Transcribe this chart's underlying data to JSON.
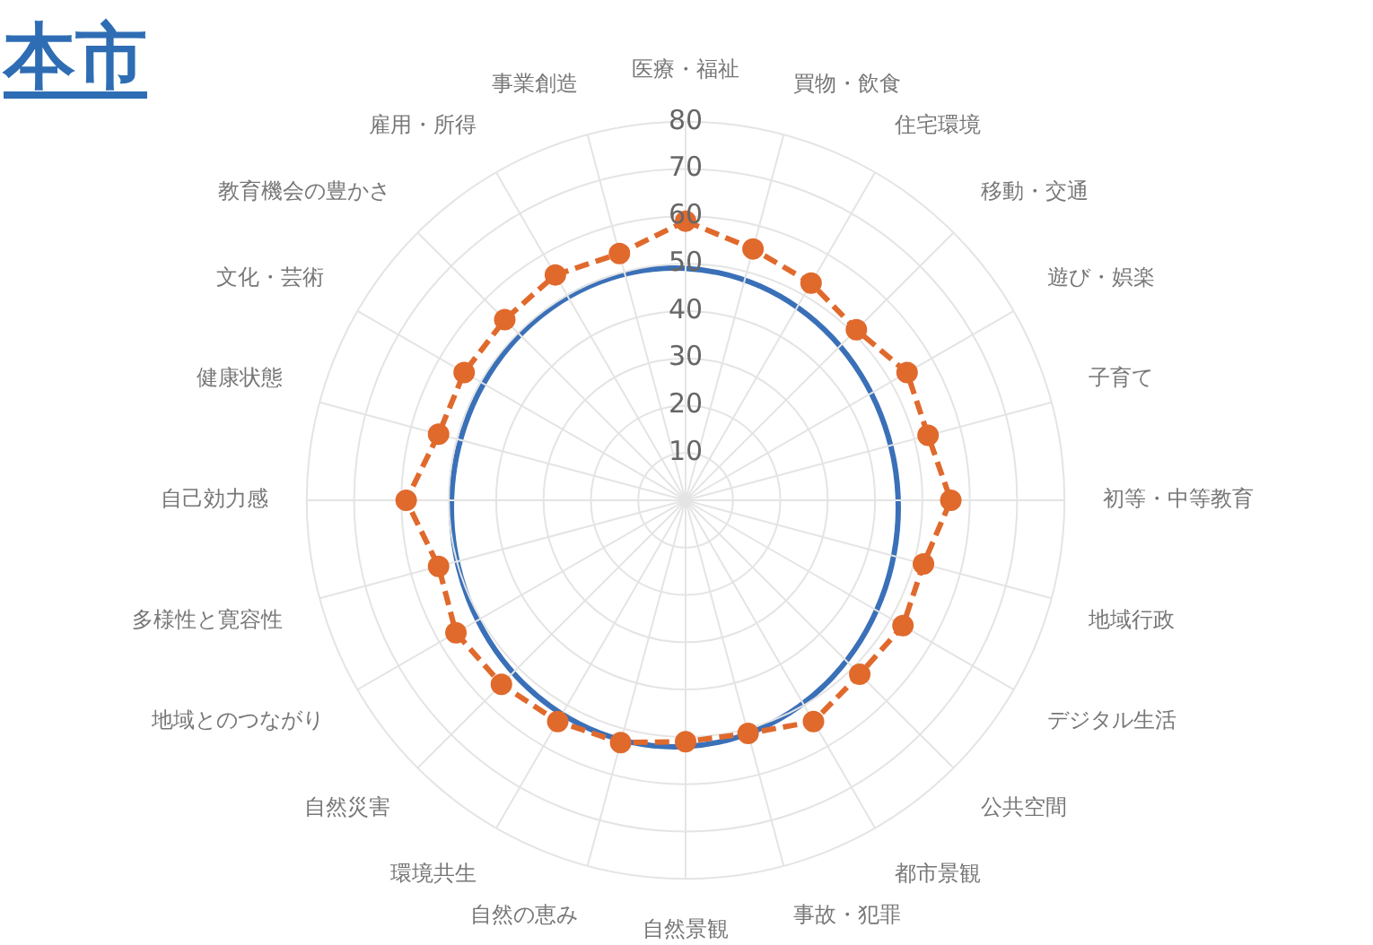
{
  "chart_data": {
    "type": "radar",
    "title": "本市",
    "categories": [
      "医療・福祉",
      "買物・飲食",
      "住宅環境",
      "移動・交通",
      "遊び・娯楽",
      "子育て",
      "初等・中等教育",
      "地域行政",
      "デジタル生活",
      "公共空間",
      "都市景観",
      "事故・犯罪",
      "自然景観",
      "自然の恵み",
      "環境共生",
      "自然災害",
      "地域とのつながり",
      "多様性と寛容性",
      "自己効力感",
      "健康状態",
      "文化・芸術",
      "教育機会の豊かさ",
      "雇用・所得",
      "事業創造"
    ],
    "series": [
      {
        "color": "#e0692c",
        "values": [
          59,
          55,
          53,
          51,
          54,
          53,
          56,
          52,
          53,
          52,
          54,
          51,
          51,
          53,
          54,
          55,
          56,
          54,
          59,
          54,
          54,
          54,
          55,
          54
        ]
      }
    ],
    "ylim": [
      0,
      80
    ],
    "yticks": [
      10,
      20,
      30,
      40,
      50,
      60,
      70,
      80
    ],
    "grid": true,
    "legend": false,
    "marker": "circle",
    "line_style": "dashed"
  }
}
